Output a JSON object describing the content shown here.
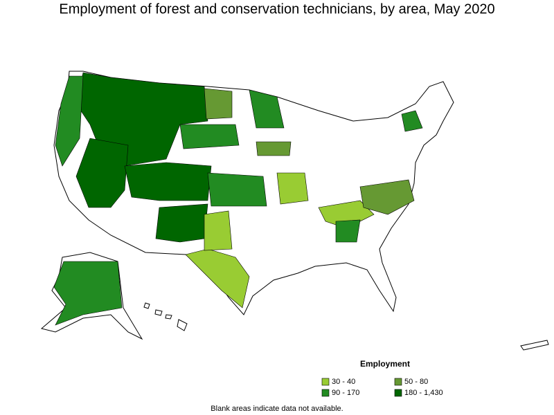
{
  "title": "Employment of forest and conservation technicians, by area, May 2020",
  "legend": {
    "title": "Employment",
    "items": [
      {
        "label": "30 - 40",
        "color": "#99cc33"
      },
      {
        "label": "50 - 80",
        "color": "#669933"
      },
      {
        "label": "90 - 170",
        "color": "#228b22"
      },
      {
        "label": "180 - 1,430",
        "color": "#006600"
      }
    ]
  },
  "note": "Blank areas indicate data not available."
}
